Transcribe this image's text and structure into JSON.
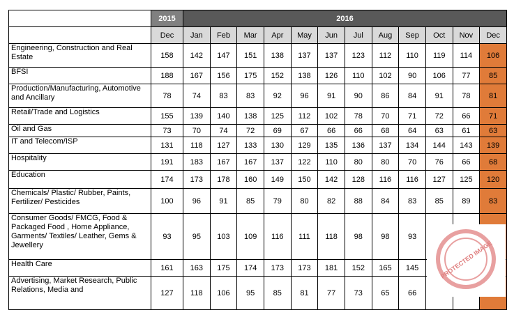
{
  "table": {
    "year_headers": [
      {
        "label": "2015"
      },
      {
        "label": "2016"
      }
    ],
    "months": [
      "Dec",
      "Jan",
      "Feb",
      "Mar",
      "Apr",
      "May",
      "Jun",
      "Jul",
      "Aug",
      "Sep",
      "Oct",
      "Nov",
      "Dec"
    ],
    "rows": [
      {
        "label": "Engineering, Construction and Real Estate",
        "values": [
          158,
          142,
          147,
          151,
          138,
          137,
          137,
          123,
          112,
          110,
          119,
          114,
          106
        ]
      },
      {
        "label": "BFSI",
        "values": [
          188,
          167,
          156,
          175,
          152,
          138,
          126,
          110,
          102,
          90,
          106,
          77,
          85
        ]
      },
      {
        "label": "Production/Manufacturing, Automotive and Ancillary",
        "values": [
          78,
          74,
          83,
          83,
          92,
          96,
          91,
          90,
          86,
          84,
          91,
          78,
          81
        ]
      },
      {
        "label": "Retail/Trade and Logistics",
        "values": [
          155,
          139,
          140,
          138,
          125,
          112,
          102,
          78,
          70,
          71,
          72,
          66,
          71
        ]
      },
      {
        "label": "Oil and Gas",
        "values": [
          73,
          70,
          74,
          72,
          69,
          67,
          66,
          66,
          68,
          64,
          63,
          61,
          63
        ]
      },
      {
        "label": "IT and Telecom/ISP",
        "values": [
          131,
          118,
          127,
          133,
          130,
          129,
          135,
          136,
          137,
          134,
          144,
          143,
          139
        ]
      },
      {
        "label": "Hospitality",
        "values": [
          191,
          183,
          167,
          167,
          137,
          122,
          110,
          80,
          80,
          70,
          76,
          66,
          68
        ]
      },
      {
        "label": "Education",
        "values": [
          174,
          173,
          178,
          160,
          149,
          150,
          142,
          128,
          116,
          116,
          127,
          125,
          120
        ]
      },
      {
        "label": "Chemicals/ Plastic/ Rubber, Paints, Fertilizer/ Pesticides",
        "values": [
          100,
          96,
          91,
          85,
          79,
          80,
          82,
          88,
          84,
          83,
          85,
          89,
          83
        ]
      },
      {
        "label": "Consumer Goods/ FMCG, Food & Packaged Food , Home Appliance, Garments/ Textiles/ Leather, Gems & Jewellery",
        "values": [
          93,
          95,
          103,
          109,
          116,
          111,
          118,
          98,
          98,
          93,
          null,
          null,
          null
        ]
      },
      {
        "label": "Health Care",
        "values": [
          161,
          163,
          175,
          174,
          173,
          173,
          181,
          152,
          165,
          145,
          null,
          null,
          null
        ]
      },
      {
        "label": "Advertising, Market Research, Public Relations, Media and",
        "values": [
          127,
          118,
          106,
          95,
          85,
          81,
          77,
          73,
          65,
          66,
          null,
          null,
          null
        ]
      }
    ]
  },
  "watermark": "PROTECTED IMAGE"
}
